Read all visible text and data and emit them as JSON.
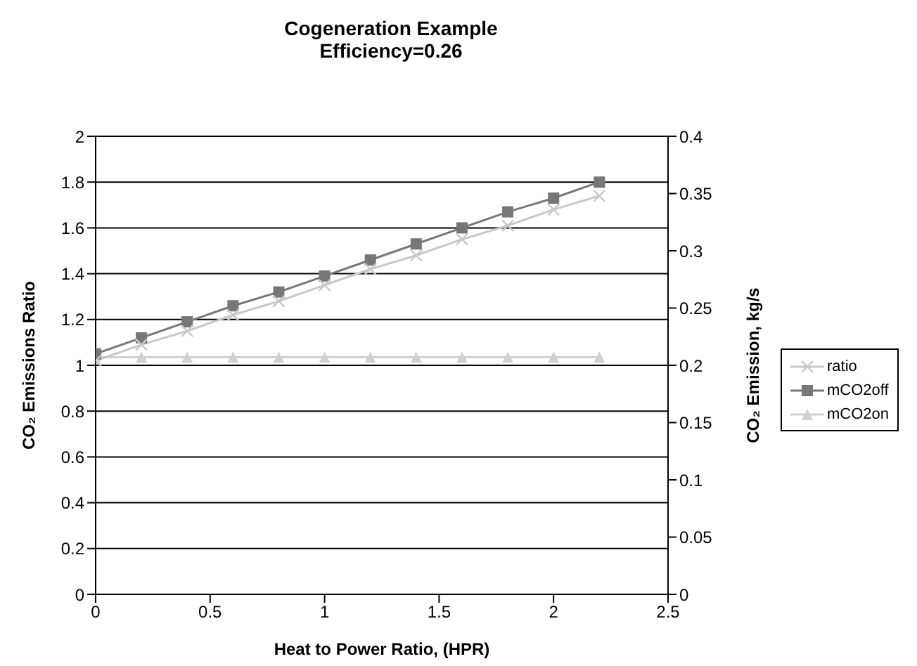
{
  "chart_data": {
    "type": "line",
    "title": "Cogeneration Example",
    "subtitle": "Efficiency=0.26",
    "xlabel": "Heat to Power Ratio, (HPR)",
    "ylabel": "CO₂ Emissions Ratio",
    "y2label": "CO₂ Emission, kg/s",
    "x": [
      0,
      0.2,
      0.4,
      0.6,
      0.8,
      1.0,
      1.2,
      1.4,
      1.6,
      1.8,
      2.0,
      2.2
    ],
    "series": [
      {
        "name": "ratio",
        "color": "#c8c8c8",
        "marker": "cross",
        "values": [
          1.02,
          1.09,
          1.15,
          1.22,
          1.28,
          1.35,
          1.42,
          1.48,
          1.55,
          1.61,
          1.68,
          1.74
        ]
      },
      {
        "name": "mCO2off",
        "color": "#777777",
        "marker": "square",
        "axis": "y2",
        "values": [
          0.21,
          0.224,
          0.238,
          0.252,
          0.264,
          0.278,
          0.292,
          0.306,
          0.32,
          0.334,
          0.346,
          0.36
        ]
      },
      {
        "name": "mCO2on",
        "color": "#d0d0d0",
        "marker": "triangle",
        "axis": "y2",
        "values": [
          0.207,
          0.207,
          0.207,
          0.207,
          0.207,
          0.207,
          0.207,
          0.207,
          0.207,
          0.207,
          0.207,
          0.207
        ]
      }
    ],
    "xlim": [
      0,
      2.5
    ],
    "xticks": [
      0,
      0.5,
      1,
      1.5,
      2,
      2.5
    ],
    "ylim": [
      0,
      2
    ],
    "yticks": [
      0,
      0.2,
      0.4,
      0.6,
      0.8,
      1,
      1.2,
      1.4,
      1.6,
      1.8,
      2
    ],
    "y2lim": [
      0,
      0.4
    ],
    "y2ticks": [
      0,
      0.05,
      0.1,
      0.15,
      0.2,
      0.25,
      0.3,
      0.35,
      0.4
    ],
    "grid": "y",
    "legend": "right",
    "line_style": "solid"
  }
}
